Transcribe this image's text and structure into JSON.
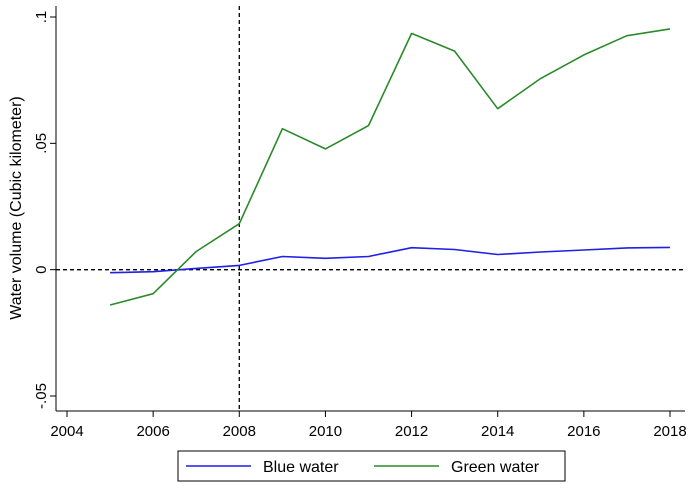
{
  "chart_data": {
    "type": "line",
    "title": "",
    "xlabel": "",
    "ylabel": "Water volume (Cubic kilometer)",
    "xlim": [
      2004,
      2018
    ],
    "ylim": [
      -0.055,
      0.1
    ],
    "x_ticks": [
      2004,
      2006,
      2008,
      2010,
      2012,
      2014,
      2016,
      2018
    ],
    "x_tick_labels": [
      "2004",
      "2006",
      "2008",
      "2010",
      "2012",
      "2014",
      "2016",
      "2018"
    ],
    "y_ticks": [
      -0.05,
      0,
      0.05,
      0.1
    ],
    "y_tick_labels": [
      "-.05",
      "0",
      ".05",
      ".1"
    ],
    "reference_lines": {
      "vertical_x": 2008,
      "horizontal_y": 0,
      "style": "dashed"
    },
    "grid": false,
    "legend": {
      "placement": "bottom",
      "entries": [
        "Blue water",
        "Green water"
      ]
    },
    "x": [
      2005,
      2006,
      2007,
      2008,
      2009,
      2010,
      2011,
      2012,
      2013,
      2014,
      2015,
      2016,
      2017,
      2018
    ],
    "series": [
      {
        "name": "Blue water",
        "color": "#1f1fe6",
        "values": [
          -0.0012,
          -0.0008,
          0.0005,
          0.0017,
          0.0052,
          0.0045,
          0.0052,
          0.0087,
          0.008,
          0.006,
          0.007,
          0.0078,
          0.0086,
          0.0088
        ]
      },
      {
        "name": "Green water",
        "color": "#2a8a2a",
        "values": [
          -0.014,
          -0.0095,
          0.0072,
          0.0182,
          0.0558,
          0.0478,
          0.057,
          0.0935,
          0.0865,
          0.0637,
          0.0757,
          0.085,
          0.0926,
          0.0953
        ]
      }
    ]
  }
}
